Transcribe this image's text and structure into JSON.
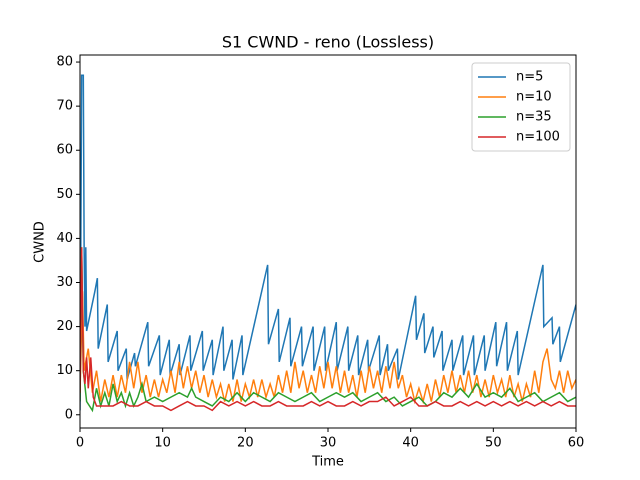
{
  "chart_data": {
    "type": "line",
    "title": "S1 CWND - reno (Lossless)",
    "x_label": "Time",
    "y_label": "CWND",
    "xlim": [
      0,
      60
    ],
    "ylim": [
      -3,
      81.6
    ],
    "xticks": [
      0,
      10,
      20,
      30,
      40,
      50,
      60
    ],
    "yticks": [
      0,
      10,
      20,
      30,
      40,
      50,
      60,
      70,
      80
    ],
    "grid": false,
    "legend": "upper right",
    "series": [
      {
        "name": "n=5",
        "color": "#1f77b4",
        "x": [
          0,
          0.2,
          0.4,
          0.5,
          0.6,
          0.7,
          0.8,
          1.8,
          2.1,
          2.2,
          3.3,
          3.4,
          4.5,
          4.6,
          5.6,
          5.7,
          6.6,
          6.7,
          8.2,
          8.3,
          9.6,
          9.7,
          10.8,
          10.9,
          12,
          12.1,
          13.3,
          13.4,
          14.8,
          14.9,
          16,
          16.1,
          17.3,
          17.4,
          18.4,
          18.5,
          19.6,
          19.7,
          22.7,
          22.8,
          24,
          24.1,
          25.4,
          25.5,
          26.8,
          26.9,
          28.2,
          28.3,
          29.6,
          29.7,
          31,
          31.1,
          32.4,
          32.5,
          33.6,
          33.7,
          34.8,
          34.9,
          36.2,
          36.3,
          37.2,
          37.3,
          38.4,
          38.5,
          40.6,
          40.7,
          41.6,
          41.7,
          42.7,
          42.8,
          43.8,
          43.9,
          45,
          45.1,
          46.3,
          46.4,
          47.6,
          47.7,
          48.9,
          49,
          50.3,
          50.4,
          51.6,
          51.7,
          52.9,
          53,
          56,
          56.1,
          57.1,
          57.2,
          58,
          58.1,
          60
        ],
        "values": [
          1,
          77,
          77,
          38,
          20,
          38,
          19,
          28,
          31,
          15,
          25,
          12,
          19,
          10,
          15,
          8,
          14,
          11,
          21,
          11,
          18,
          9,
          17,
          9,
          16,
          9,
          18,
          10,
          19,
          10,
          17,
          9,
          20,
          10,
          17,
          8,
          18,
          9,
          34,
          16,
          24,
          12,
          22,
          11,
          20,
          11,
          20,
          10,
          20,
          10,
          21,
          10,
          20,
          10,
          18,
          9,
          17,
          10,
          18,
          9,
          16,
          10,
          15,
          8,
          27,
          17,
          23,
          14,
          20,
          13,
          19,
          10,
          17,
          10,
          18,
          9,
          18,
          9,
          18,
          10,
          21,
          11,
          21,
          10,
          19,
          9,
          34,
          20,
          22,
          16,
          20,
          12,
          25
        ]
      },
      {
        "name": "n=10",
        "color": "#ff7f0e",
        "x": [
          0,
          0.3,
          0.5,
          1,
          1.5,
          2,
          2.5,
          3,
          3.5,
          4,
          4.5,
          5,
          5.5,
          6,
          6.5,
          7,
          7.5,
          8,
          8.5,
          9,
          9.5,
          10,
          10.5,
          11,
          11.5,
          12,
          12.5,
          13,
          13.5,
          14,
          14.5,
          15,
          15.5,
          16,
          16.5,
          17,
          17.5,
          18,
          18.5,
          19,
          19.5,
          20,
          20.5,
          21,
          21.5,
          22,
          22.5,
          23,
          23.5,
          24,
          24.5,
          25,
          25.5,
          26,
          26.5,
          27,
          27.5,
          28,
          28.5,
          29,
          29.5,
          30,
          30.5,
          31,
          31.5,
          32,
          32.5,
          33,
          33.5,
          34,
          34.5,
          35,
          35.5,
          36,
          36.5,
          37,
          37.5,
          38,
          38.5,
          39,
          39.5,
          40,
          40.5,
          41,
          41.5,
          42,
          42.5,
          43,
          43.5,
          44,
          44.5,
          45,
          45.5,
          46,
          46.5,
          47,
          47.5,
          48,
          48.5,
          49,
          49.5,
          50,
          50.5,
          51,
          51.5,
          52,
          52.5,
          53,
          53.5,
          54,
          54.5,
          55,
          55.5,
          56,
          56.5,
          57,
          57.5,
          58,
          58.5,
          59,
          59.5,
          60
        ],
        "values": [
          5,
          28,
          10,
          15,
          5,
          10,
          3,
          8,
          4,
          9,
          4,
          9,
          5,
          12,
          6,
          12,
          5,
          9,
          4,
          8,
          4,
          8,
          5,
          10,
          5,
          12,
          6,
          11,
          6,
          10,
          5,
          9,
          4,
          8,
          4,
          7,
          3,
          7,
          3,
          8,
          3,
          7,
          4,
          8,
          4,
          8,
          4,
          7,
          4,
          9,
          5,
          10,
          5,
          12,
          6,
          10,
          5,
          9,
          5,
          11,
          6,
          12,
          6,
          11,
          5,
          10,
          5,
          9,
          4,
          10,
          5,
          11,
          6,
          10,
          5,
          11,
          6,
          12,
          6,
          9,
          4,
          7,
          3,
          6,
          3,
          7,
          3,
          8,
          4,
          9,
          5,
          10,
          5,
          9,
          5,
          10,
          5,
          9,
          4,
          8,
          4,
          9,
          5,
          8,
          4,
          9,
          4,
          7,
          3,
          7,
          4,
          10,
          5,
          12,
          15,
          8,
          6,
          10,
          5,
          10,
          6,
          8
        ]
      },
      {
        "name": "n=35",
        "color": "#2ca02c",
        "x": [
          0,
          0.2,
          0.4,
          0.8,
          1.5,
          2,
          2.5,
          3,
          3.5,
          4,
          4.5,
          5,
          5.5,
          6,
          6.5,
          7,
          7.5,
          8,
          9,
          10,
          11,
          12,
          13,
          13.5,
          14,
          15,
          16,
          17,
          18,
          19,
          20,
          21,
          22,
          23,
          24,
          25,
          26,
          27,
          28,
          29,
          30,
          31,
          32,
          33,
          34,
          35,
          36,
          37,
          38,
          39,
          40,
          41,
          42,
          43,
          44,
          45,
          46,
          47,
          48,
          49,
          50,
          51,
          52,
          53,
          54,
          55,
          56,
          57,
          58,
          59,
          60
        ],
        "values": [
          3,
          38,
          10,
          3,
          1,
          6,
          2,
          5,
          2,
          7,
          3,
          5,
          2,
          5,
          2,
          4,
          7,
          3,
          4,
          3,
          4,
          5,
          4,
          6,
          4,
          3,
          2,
          4,
          3,
          5,
          3,
          5,
          4,
          3,
          5,
          4,
          3,
          4,
          5,
          3,
          4,
          5,
          4,
          5,
          3,
          4,
          5,
          3,
          4,
          2,
          3,
          4,
          2,
          3,
          5,
          4,
          6,
          4,
          7,
          4,
          5,
          4,
          6,
          3,
          4,
          5,
          3,
          4,
          5,
          3,
          4
        ]
      },
      {
        "name": "n=100",
        "color": "#d62728",
        "x": [
          0,
          0.2,
          0.4,
          0.6,
          0.8,
          1,
          1.3,
          1.6,
          2,
          4,
          5,
          6,
          7,
          8,
          9,
          10,
          11,
          12,
          13,
          14,
          15,
          16,
          17,
          18,
          19,
          20,
          21,
          22,
          23,
          24,
          25,
          26,
          27,
          28,
          29,
          30,
          31,
          32,
          33,
          34,
          35,
          36,
          37,
          38,
          39,
          40,
          41,
          42,
          43,
          44,
          45,
          46,
          47,
          48,
          49,
          50,
          51,
          52,
          53,
          54,
          55,
          56,
          57,
          58,
          59,
          60
        ],
        "values": [
          5,
          38,
          10,
          7,
          13,
          6,
          13,
          4,
          2,
          2,
          3,
          2,
          2,
          3,
          2,
          2,
          1,
          2,
          3,
          2,
          2,
          1,
          3,
          2,
          3,
          2,
          3,
          2,
          2,
          3,
          2,
          2,
          2,
          3,
          2,
          3,
          2,
          2,
          3,
          2,
          3,
          3,
          4,
          2,
          3,
          4,
          2,
          2,
          3,
          2,
          2,
          3,
          2,
          3,
          2,
          3,
          2,
          3,
          2,
          3,
          2,
          3,
          2,
          3,
          2,
          2
        ]
      }
    ]
  }
}
